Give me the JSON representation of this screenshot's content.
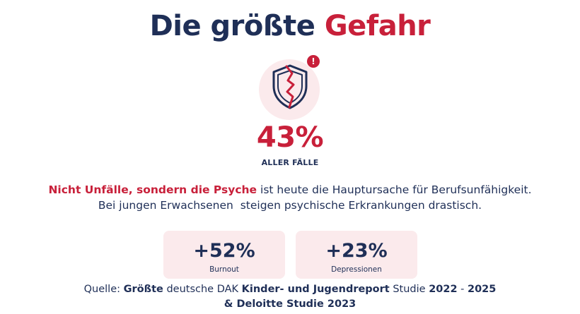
{
  "header": {
    "title_part1": "Die größte",
    "title_part2": "Gefahr"
  },
  "hero": {
    "icon": "broken-shield-icon",
    "badge": "!",
    "percent": "43%",
    "caption": "ALLER FÄLLE"
  },
  "body": {
    "highlight": "Nicht Unfälle, sondern die Psyche",
    "line1_rest": "ist heute die Hauptursache für Berufsunfähigkeit.",
    "line2": "Bei jungen Erwachsenen  steigen psychische Erkrankungen drastisch."
  },
  "stats": [
    {
      "value": "+52%",
      "label": "Burnout"
    },
    {
      "value": "+23%",
      "label": "Depressionen"
    }
  ],
  "source": {
    "prefix": "Quelle:",
    "s1": "Größte",
    "s2": "deutsche DAK",
    "s3": "Kinder- und Jugendreport",
    "s4": "Studie",
    "s5": "2022",
    "s6": "-",
    "s7": "2025",
    "s8": "& Deloitte Studie 2023"
  },
  "colors": {
    "navy": "#1f2f57",
    "red": "#c8203a",
    "pink": "#fbeaec"
  }
}
